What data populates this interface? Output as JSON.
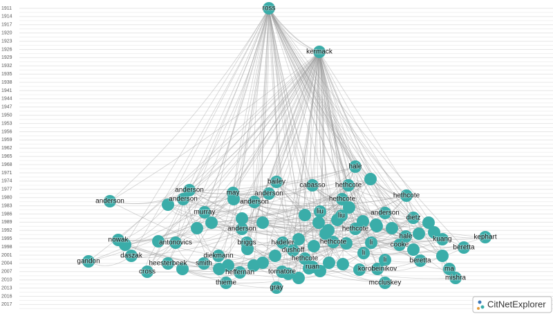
{
  "year_axis": {
    "labels": [
      1911,
      1914,
      1917,
      1920,
      1923,
      1926,
      1929,
      1932,
      1935,
      1938,
      1941,
      1944,
      1947,
      1950,
      1953,
      1956,
      1959,
      1962,
      1965,
      1968,
      1971,
      1974,
      1977,
      1980,
      1983,
      1986,
      1989,
      1992,
      1995,
      1998,
      2001,
      2004,
      2007,
      2010,
      2013,
      2016,
      2017
    ]
  },
  "nodes": [
    {
      "label": "ross"
    },
    {
      "label": "kermack"
    },
    {
      "label": "hale"
    },
    {
      "label": "bailey"
    },
    {
      "label": "cabasso"
    },
    {
      "label": "hethcote"
    },
    {
      "label": "anderson"
    },
    {
      "label": "may"
    },
    {
      "label": "anderson"
    },
    {
      "label": "hethcote"
    },
    {
      "label": "hethcote"
    },
    {
      "label": "anderson"
    },
    {
      "label": "anderson"
    },
    {
      "label": "anderson"
    },
    {
      "label": "murray"
    },
    {
      "label": "liu"
    },
    {
      "label": "liu"
    },
    {
      "label": "anderson"
    },
    {
      "label": "dietz"
    },
    {
      "label": "anderson"
    },
    {
      "label": "hethcote"
    },
    {
      "label": "nowak"
    },
    {
      "label": "antonovics"
    },
    {
      "label": "briggs"
    },
    {
      "label": "hadeler"
    },
    {
      "label": "hethcote"
    },
    {
      "label": "li"
    },
    {
      "label": "hale"
    },
    {
      "label": "kuang"
    },
    {
      "label": "kephart"
    },
    {
      "label": "dushoff"
    },
    {
      "label": "cooke"
    },
    {
      "label": "beretta"
    },
    {
      "label": "daszak"
    },
    {
      "label": "diekmann"
    },
    {
      "label": "li"
    },
    {
      "label": "gandon"
    },
    {
      "label": "hethcote"
    },
    {
      "label": "heesterbeek"
    },
    {
      "label": "smith"
    },
    {
      "label": "li"
    },
    {
      "label": "beretta"
    },
    {
      "label": "ruan"
    },
    {
      "label": "korobeinikov"
    },
    {
      "label": "ma"
    },
    {
      "label": "cross"
    },
    {
      "label": "heffernan"
    },
    {
      "label": "tornatore"
    },
    {
      "label": "mishra"
    },
    {
      "label": "thieme"
    },
    {
      "label": "mccluskey"
    },
    {
      "label": "gray"
    }
  ],
  "logo": {
    "text": "CitNetExplorer"
  }
}
